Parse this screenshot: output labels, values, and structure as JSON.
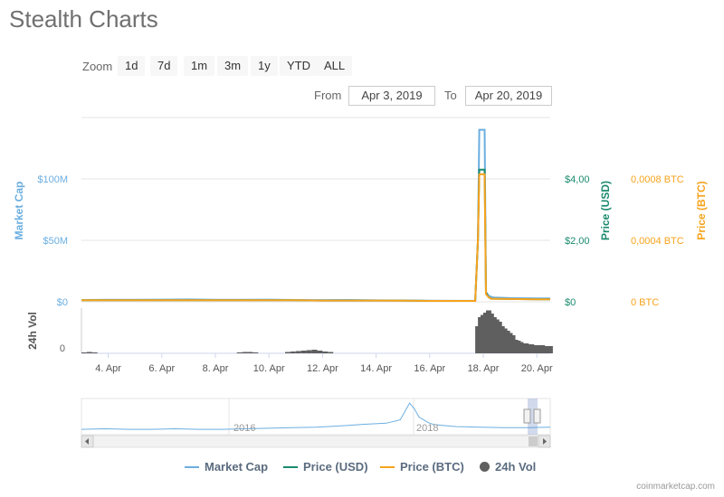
{
  "page": {
    "title": "Stealth Charts",
    "credit": "coinmarketcap.com"
  },
  "zoom": {
    "label": "Zoom",
    "buttons": [
      "1d",
      "7d",
      "1m",
      "3m",
      "1y",
      "YTD",
      "ALL"
    ]
  },
  "range": {
    "from_label": "From",
    "from_value": "Apr 3, 2019",
    "to_label": "To",
    "to_value": "Apr 20, 2019"
  },
  "colors": {
    "market_cap": "#6baee0",
    "price_usd": "#1a8a6e",
    "price_btc": "#f7a31c",
    "volume": "#5f5f5f",
    "navigator": "#6baee0"
  },
  "chart_data": {
    "type": "line",
    "x_axis": {
      "ticks": [
        "4. Apr",
        "6. Apr",
        "8. Apr",
        "10. Apr",
        "12. Apr",
        "14. Apr",
        "16. Apr",
        "18. Apr",
        "20. Apr"
      ]
    },
    "y_axes": {
      "market_cap": {
        "title": "Market Cap",
        "ticks": [
          "$0",
          "$50M",
          "$100M"
        ],
        "range": [
          0,
          150000000
        ]
      },
      "price_usd": {
        "title": "Price (USD)",
        "ticks": [
          "$0",
          "$2,00",
          "$4,00"
        ],
        "range": [
          0,
          6
        ]
      },
      "price_btc": {
        "title": "Price (BTC)",
        "ticks": [
          "0 BTC",
          "0,0004 BTC",
          "0,0008 BTC"
        ],
        "range": [
          0,
          0.0012
        ]
      },
      "volume": {
        "title": "24h Vol",
        "ticks": [
          "0"
        ]
      }
    },
    "series": [
      {
        "name": "Market Cap",
        "axis": "market_cap",
        "x": [
          3.0,
          4.0,
          5.0,
          6.0,
          7.0,
          8.0,
          9.0,
          10.0,
          11.0,
          12.0,
          13.0,
          14.0,
          15.0,
          16.0,
          17.0,
          17.7,
          17.8,
          17.85,
          18.0,
          18.05,
          18.1,
          18.2,
          18.3,
          18.4,
          19.0,
          20.0,
          20.5
        ],
        "values": [
          1500000,
          1700000,
          1600000,
          1800000,
          1900000,
          1700000,
          1600000,
          1800000,
          1500000,
          1400000,
          1500000,
          1200000,
          1000000,
          900000,
          800000,
          900000,
          50000000,
          140000000,
          140000000,
          140000000,
          8000000,
          5000000,
          4000000,
          3500000,
          3000000,
          2800000,
          2700000
        ]
      },
      {
        "name": "Price (USD)",
        "axis": "price_usd",
        "x": [
          3.0,
          4.0,
          5.0,
          6.0,
          7.0,
          8.0,
          9.0,
          10.0,
          11.0,
          12.0,
          13.0,
          14.0,
          15.0,
          16.0,
          17.0,
          17.7,
          17.8,
          17.85,
          18.0,
          18.05,
          18.1,
          18.2,
          18.3,
          18.4,
          19.0,
          20.0,
          20.5
        ],
        "values": [
          0.05,
          0.05,
          0.05,
          0.05,
          0.05,
          0.05,
          0.05,
          0.05,
          0.05,
          0.04,
          0.04,
          0.04,
          0.04,
          0.03,
          0.03,
          0.03,
          2.0,
          4.3,
          4.3,
          4.3,
          0.3,
          0.15,
          0.1,
          0.1,
          0.09,
          0.08,
          0.08
        ]
      },
      {
        "name": "Price (BTC)",
        "axis": "price_btc",
        "x": [
          3.0,
          4.0,
          5.0,
          6.0,
          7.0,
          8.0,
          9.0,
          10.0,
          11.0,
          12.0,
          13.0,
          14.0,
          15.0,
          16.0,
          17.0,
          17.7,
          17.8,
          17.85,
          18.0,
          18.05,
          18.1,
          18.2,
          18.3,
          18.4,
          19.0,
          20.0,
          20.5
        ],
        "values": [
          1e-05,
          1e-05,
          1e-05,
          1e-05,
          1e-05,
          1e-05,
          1e-05,
          1e-05,
          1e-05,
          8e-06,
          8e-06,
          8e-06,
          7e-06,
          6e-06,
          6e-06,
          6e-06,
          0.0004,
          0.00083,
          0.00083,
          0.00083,
          5e-05,
          3e-05,
          2e-05,
          2e-05,
          1.8e-05,
          1.6e-05,
          1.6e-05
        ]
      }
    ],
    "volume": {
      "name": "24h Vol",
      "x": [
        3.1,
        3.3,
        3.5,
        8.9,
        9.1,
        9.3,
        9.5,
        10.7,
        10.9,
        11.1,
        11.3,
        11.5,
        11.7,
        11.9,
        12.1,
        12.3,
        17.8,
        17.9,
        18.0,
        18.1,
        18.2,
        18.3,
        18.4,
        18.5,
        18.6,
        18.7,
        18.8,
        18.9,
        19.0,
        19.1,
        19.2,
        19.3,
        19.4,
        19.5,
        19.6,
        19.7,
        19.8,
        19.9,
        20.0,
        20.1,
        20.2,
        20.3,
        20.4,
        20.5
      ],
      "values": [
        2,
        3,
        2,
        2,
        3,
        3,
        2,
        3,
        4,
        5,
        6,
        7,
        8,
        6,
        4,
        3,
        60,
        80,
        85,
        90,
        95,
        88,
        80,
        75,
        70,
        60,
        55,
        50,
        45,
        40,
        30,
        28,
        25,
        22,
        22,
        20,
        20,
        18,
        18,
        18,
        18,
        16,
        16,
        16
      ]
    },
    "navigator": {
      "labels": [
        "2016",
        "2018"
      ],
      "x": [
        0,
        5,
        10,
        15,
        20,
        25,
        30,
        35,
        40,
        45,
        50,
        55,
        60,
        65,
        68,
        70,
        71,
        72,
        73,
        74,
        75,
        77,
        80,
        85,
        90,
        95,
        100
      ],
      "values": [
        3,
        4,
        3,
        3,
        4,
        3,
        3,
        4,
        5,
        6,
        7,
        9,
        12,
        14,
        20,
        50,
        40,
        25,
        20,
        15,
        12,
        10,
        8,
        7,
        6,
        6,
        7
      ]
    },
    "legend": [
      "Market Cap",
      "Price (USD)",
      "Price (BTC)",
      "24h Vol"
    ],
    "grid": true,
    "legend_position": "bottom"
  }
}
